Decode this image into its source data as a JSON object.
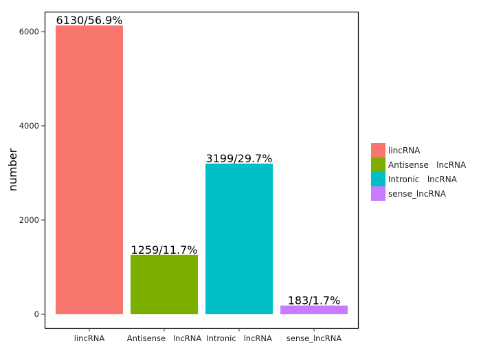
{
  "chart_data": {
    "type": "bar",
    "title": "",
    "xlabel": "",
    "ylabel": "number",
    "categories": [
      "lincRNA",
      "Antisense   lncRNA",
      "Intronic   lncRNA",
      "sense_lncRNA"
    ],
    "values": [
      6130,
      1259,
      3199,
      183
    ],
    "data_labels": [
      "6130/56.9%",
      "1259/11.7%",
      "3199/29.7%",
      "183/1.7%"
    ],
    "colors": [
      "#F8766D",
      "#7CAE00",
      "#00BFC4",
      "#C77CFF"
    ],
    "ylim": [
      -300,
      6450
    ],
    "yticks": [
      0,
      2000,
      4000,
      6000
    ],
    "grid": false,
    "legend": {
      "placement": "right",
      "entries": [
        "lincRNA",
        "Antisense   lncRNA",
        "Intronic   lncRNA",
        "sense_lncRNA"
      ]
    }
  }
}
